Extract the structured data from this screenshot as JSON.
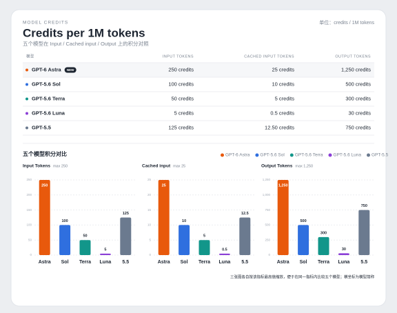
{
  "header": {
    "eyebrow": "MODEL CREDITS",
    "title": "Credits per 1M tokens",
    "subtitle": "五个模型在 Input / Cached input / Output 上的积分对照",
    "unit": "单位：credits / 1M tokens"
  },
  "table": {
    "columns": [
      "模型",
      "INPUT TOKENS",
      "CACHED INPUT TOKENS",
      "OUTPUT TOKENS"
    ],
    "badge": "NEW",
    "rows": [
      [
        "GPT-6 Astra",
        "250 credits",
        "25 credits",
        "1,250 credits"
      ],
      [
        "GPT-5.6 Sol",
        "100 credits",
        "10 credits",
        "500 credits"
      ],
      [
        "GPT-5.6 Terra",
        "50 credits",
        "5 credits",
        "300 credits"
      ],
      [
        "GPT-5.6 Luna",
        "5 credits",
        "0.5 credits",
        "30 credits"
      ],
      [
        "GPT-5.5",
        "125 credits",
        "12.50 credits",
        "750 credits"
      ]
    ]
  },
  "comparison": {
    "title": "五个模型积分对比",
    "legend": [
      {
        "name": "GPT-6 Astra",
        "color": "#e8590c"
      },
      {
        "name": "GPT-5.6 Sol",
        "color": "#2f6fdf"
      },
      {
        "name": "GPT-5.6 Terra",
        "color": "#12968a"
      },
      {
        "name": "GPT-5.6 Luna",
        "color": "#8b3fd6"
      },
      {
        "name": "GPT-5.5",
        "color": "#6b7a8f"
      }
    ]
  },
  "chart_data": [
    {
      "type": "bar",
      "title": "Input Tokens",
      "subtitle": "max 250",
      "categories": [
        "Astra",
        "Sol",
        "Terra",
        "Luna",
        "5.5"
      ],
      "values": [
        250,
        100,
        50,
        5,
        125
      ],
      "colors": [
        "#e8590c",
        "#2f6fdf",
        "#12968a",
        "#8b3fd6",
        "#6b7a8f"
      ],
      "ylim": [
        0,
        250
      ],
      "yticks": [
        0,
        50,
        100,
        150,
        200,
        250
      ],
      "grid": true
    },
    {
      "type": "bar",
      "title": "Cached input",
      "subtitle": "max 25",
      "categories": [
        "Astra",
        "Sol",
        "Terra",
        "Luna",
        "5.5"
      ],
      "values": [
        25,
        10,
        5,
        0.5,
        12.5
      ],
      "colors": [
        "#e8590c",
        "#2f6fdf",
        "#12968a",
        "#8b3fd6",
        "#6b7a8f"
      ],
      "ylim": [
        0,
        25
      ],
      "yticks": [
        0,
        5,
        10,
        15,
        20,
        25
      ],
      "grid": true
    },
    {
      "type": "bar",
      "title": "Output Tokens",
      "subtitle": "max 1,250",
      "categories": [
        "Astra",
        "Sol",
        "Terra",
        "Luna",
        "5.5"
      ],
      "values": [
        1250,
        500,
        300,
        30,
        750
      ],
      "value_labels": [
        "1,250",
        "500",
        "300",
        "30",
        "750"
      ],
      "colors": [
        "#e8590c",
        "#2f6fdf",
        "#12968a",
        "#8b3fd6",
        "#6b7a8f"
      ],
      "ylim": [
        0,
        1250
      ],
      "yticks": [
        0,
        250,
        500,
        750,
        {
          "value": 1000,
          "label": "1,000"
        },
        {
          "value": 1250,
          "label": "1,250"
        }
      ],
      "grid": true
    }
  ],
  "footnote": "三张图各自按该指标最高值缩放，便于在同一指标内比较五个模型；横坐标为模型简称"
}
